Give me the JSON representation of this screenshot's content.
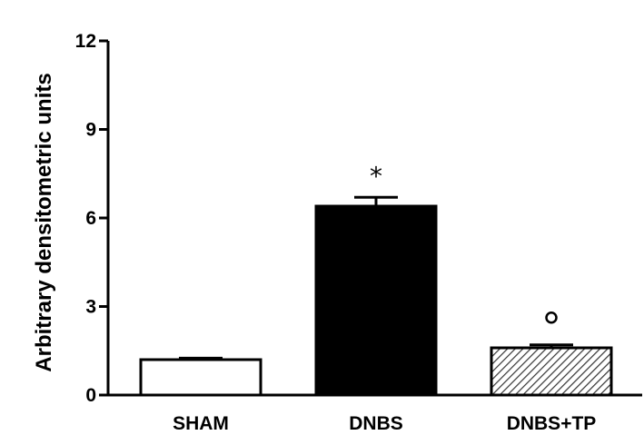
{
  "chart_data": {
    "type": "bar",
    "ylabel": "Arbitrary densitometric units",
    "xlabel": "",
    "ylim": [
      0,
      12
    ],
    "yticks": [
      0,
      3,
      6,
      9,
      12
    ],
    "categories": [
      "SHAM",
      "DNBS",
      "DNBS+TP"
    ],
    "values": [
      1.2,
      6.4,
      1.6
    ],
    "errors": [
      0.05,
      0.3,
      0.1
    ],
    "fills": [
      "#ffffff",
      "#000000",
      "hatched-gray"
    ],
    "annotations": [
      "",
      "*",
      "°"
    ],
    "grid": false
  }
}
